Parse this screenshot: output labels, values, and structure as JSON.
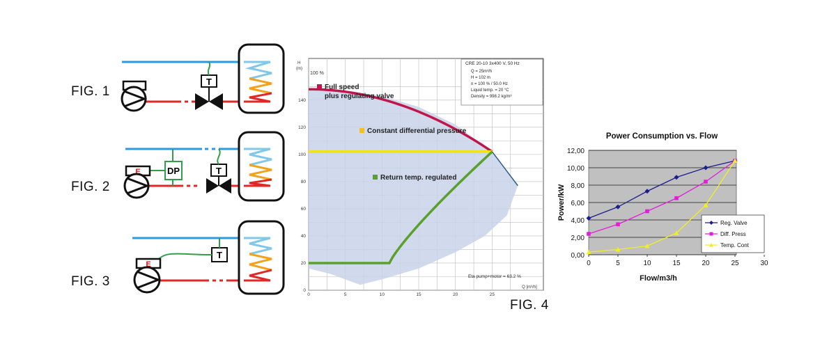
{
  "figures": {
    "fig1_label": "FIG. 1",
    "fig2_label": "FIG. 2",
    "fig3_label": "FIG. 3",
    "fig4_label": "FIG. 4",
    "fig2_dp_label": "DP",
    "thermostat_label": "T",
    "e_label": "E"
  },
  "colors": {
    "supply_pipe": "#2b9be0",
    "return_pipe": "#e02828",
    "signal_wire": "#2fa04a",
    "tank_stroke": "#111111",
    "full_speed": "#c0174a",
    "constant_dp": "#f2e21a",
    "return_temp": "#5aa02c",
    "area_fill": "#c9d3ea"
  },
  "chart_data": [
    {
      "type": "line",
      "title": "",
      "xlabel": "Q [m³/h]",
      "ylabel": "H (m)",
      "xlim": [
        0,
        30
      ],
      "ylim": [
        0,
        160
      ],
      "x_ticks": [
        0,
        5,
        10,
        15,
        20,
        25
      ],
      "x_tick_labels": [
        "0",
        "5",
        "10",
        "15",
        "20",
        "25"
      ],
      "y_ticks": [
        0,
        20,
        40,
        60,
        80,
        100,
        120,
        140
      ],
      "y_tick_labels": [
        "0",
        "20",
        "40",
        "60",
        "80",
        "100",
        "120",
        "140"
      ],
      "axis_unit_top": "H\n(m)",
      "speed_label": "100 %",
      "info_title": "CRE 20-10     3x400 V, 50 Hz",
      "info_lines": [
        "Q = 25m³/h",
        "H = 102 m",
        "n = 100 % / 50.0 Hz",
        "Liquid temp. = 20 °C",
        "Density = 998.2 kg/m³"
      ],
      "footer_text": "Eta pump+motor = 63.2 %",
      "series": [
        {
          "name": "Full speed\nplus regulating valve",
          "x": [
            0,
            5,
            10,
            15,
            20,
            25,
            28.5
          ],
          "y": [
            148,
            147,
            143,
            135,
            122,
            102,
            77
          ]
        },
        {
          "name": "Constant differential pressure",
          "x": [
            0,
            25
          ],
          "y": [
            102,
            102
          ]
        },
        {
          "name": "Return temp. regulated",
          "x": [
            0,
            11,
            15,
            20,
            25
          ],
          "y": [
            20,
            20,
            40,
            70,
            102
          ]
        }
      ],
      "grid": true
    },
    {
      "type": "line",
      "title": "Power Consumption vs. Flow",
      "xlabel": "Flow/m3/h",
      "ylabel": "Power/kW",
      "xlim": [
        0,
        30
      ],
      "ylim": [
        0,
        12
      ],
      "x_ticks": [
        0,
        5,
        10,
        15,
        20,
        25,
        30
      ],
      "x_tick_labels": [
        "0",
        "5",
        "10",
        "15",
        "20",
        "25",
        "30"
      ],
      "y_ticks": [
        0,
        2,
        4,
        6,
        8,
        10,
        12
      ],
      "y_tick_labels": [
        "0,00",
        "2,00",
        "4,00",
        "6,00",
        "8,00",
        "10,00",
        "12,00"
      ],
      "legend_position": "bottom-right",
      "grid": true,
      "series": [
        {
          "name": "Reg. Valve",
          "color": "#1a1f8a",
          "marker": "diamond",
          "x": [
            0,
            5,
            10,
            15,
            20,
            25
          ],
          "y": [
            4.2,
            5.5,
            7.3,
            8.9,
            10.0,
            10.8
          ]
        },
        {
          "name": "Diff. Press",
          "color": "#e020d8",
          "marker": "square",
          "x": [
            0,
            5,
            10,
            15,
            20,
            25
          ],
          "y": [
            2.4,
            3.5,
            5.0,
            6.5,
            8.4,
            10.8
          ]
        },
        {
          "name": "Temp. Cont",
          "color": "#f0f020",
          "marker": "triangle",
          "x": [
            0,
            5,
            10,
            15,
            20,
            25
          ],
          "y": [
            0.3,
            0.6,
            1.0,
            2.5,
            5.7,
            10.8
          ]
        }
      ]
    }
  ]
}
